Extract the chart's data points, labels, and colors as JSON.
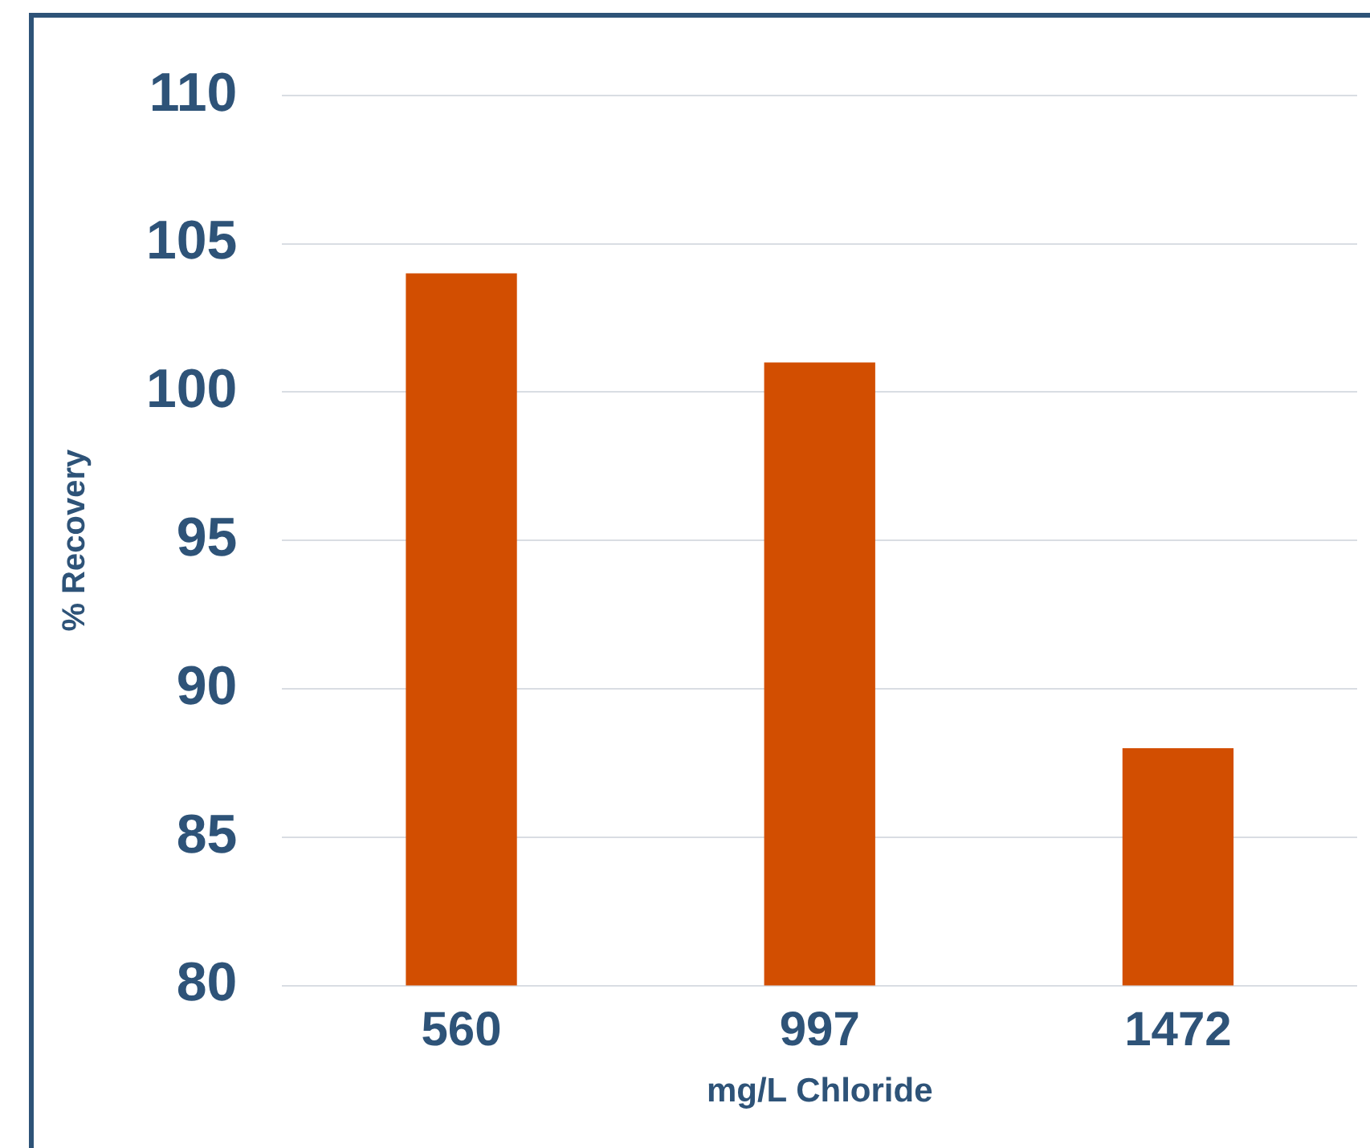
{
  "chart_data": {
    "type": "bar",
    "xlabel": "mg/L Chloride",
    "ylabel": "% Recovery",
    "categories": [
      "560",
      "997",
      "1472"
    ],
    "values": [
      104,
      101,
      88
    ],
    "color": "#d24e01",
    "ylim": [
      80,
      110
    ],
    "yticks": [
      80,
      85,
      90,
      95,
      100,
      105,
      110
    ],
    "grid": "y",
    "legend": false
  }
}
